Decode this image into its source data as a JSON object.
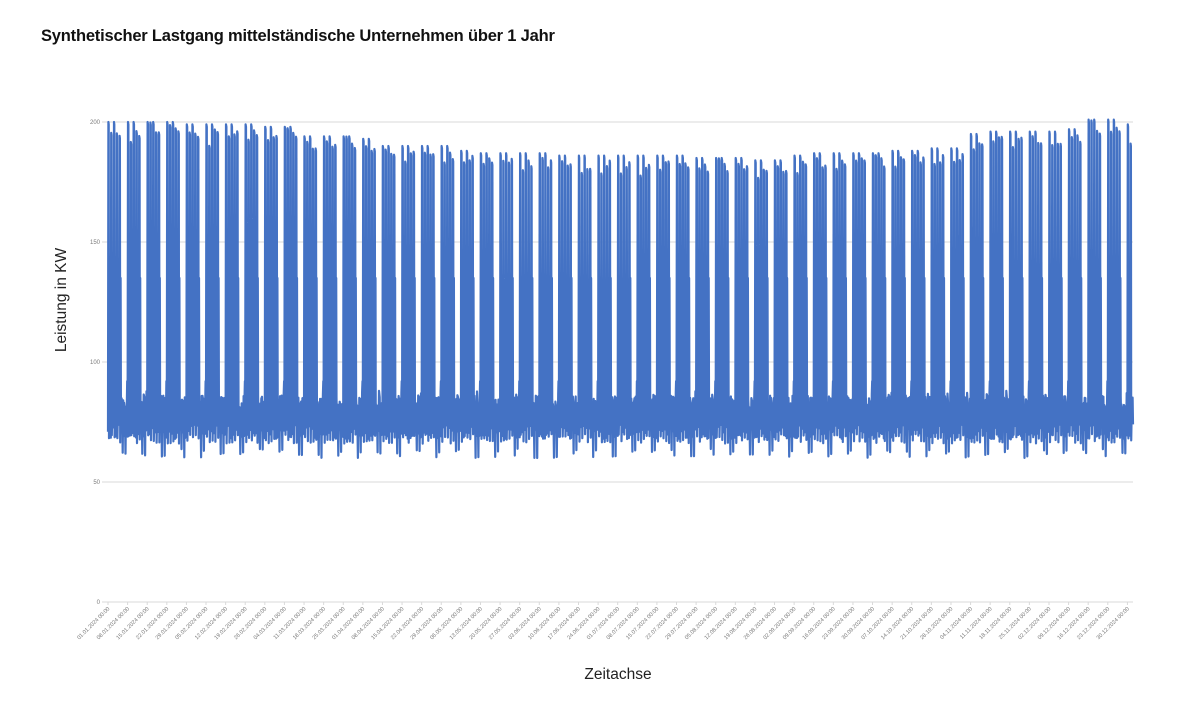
{
  "title": "Synthetischer Lastgang mittelständische Unternehmen über 1 Jahr",
  "colors": {
    "series": "#4472C4",
    "grid": "#d9d9d9",
    "axis_text": "#7a7a7a",
    "background": "#ffffff"
  },
  "chart_data": {
    "type": "line",
    "title": "Synthetischer Lastgang mittelständische Unternehmen über 1 Jahr",
    "xlabel": "Zeitachse",
    "ylabel": "Leistung in KW",
    "ylim": [
      0,
      200
    ],
    "yticks": [
      0,
      50,
      100,
      150,
      200
    ],
    "grid": true,
    "legend": "none",
    "x_tick_labels": [
      "01.01.2024 00:00",
      "08.01.2024 00:00",
      "15.01.2024 00:00",
      "22.01.2024 00:00",
      "29.01.2024 00:00",
      "05.02.2024 00:00",
      "12.02.2024 00:00",
      "19.02.2024 00:00",
      "26.02.2024 00:00",
      "04.03.2024 00:00",
      "11.03.2024 00:00",
      "18.03.2024 00:00",
      "25.03.2024 00:00",
      "01.04.2024 00:00",
      "08.04.2024 00:00",
      "15.04.2024 00:00",
      "22.04.2024 00:00",
      "29.04.2024 00:00",
      "06.05.2024 00:00",
      "13.05.2024 00:00",
      "20.05.2024 00:00",
      "27.05.2024 00:00",
      "03.06.2024 00:00",
      "10.06.2024 00:00",
      "17.06.2024 00:00",
      "24.06.2024 00:00",
      "01.07.2024 00:00",
      "08.07.2024 00:00",
      "15.07.2024 00:00",
      "22.07.2024 00:00",
      "29.07.2024 00:00",
      "05.08.2024 00:00",
      "12.08.2024 00:00",
      "19.08.2024 00:00",
      "26.08.2024 00:00",
      "02.09.2024 00:00",
      "09.09.2024 00:00",
      "16.09.2024 00:00",
      "23.09.2024 00:00",
      "30.09.2024 00:00",
      "07.10.2024 00:00",
      "14.10.2024 00:00",
      "21.10.2024 00:00",
      "28.10.2024 00:00",
      "04.11.2024 00:00",
      "11.11.2024 00:00",
      "18.11.2024 00:00",
      "25.11.2024 00:00",
      "02.12.2024 00:00",
      "09.12.2024 00:00",
      "16.12.2024 00:00",
      "23.12.2024 00:00",
      "30.12.2024 00:00"
    ],
    "series": [
      {
        "name": "Leistung in KW",
        "resolution": "daily pattern (weekday peaks, off-peak spikes, base load)",
        "weekly_peak_kw": [
          200,
          200,
          200,
          200,
          199,
          199,
          199,
          199,
          198,
          198,
          194,
          194,
          194,
          193,
          190,
          190,
          190,
          190,
          188,
          187,
          187,
          187,
          187,
          186,
          186,
          186,
          186,
          186,
          186,
          186,
          185,
          185,
          185,
          184,
          184,
          186,
          187,
          187,
          187,
          187,
          188,
          188,
          189,
          189,
          195,
          196,
          196,
          196,
          196,
          197,
          201,
          201,
          199
        ],
        "secondary_spike_kw": 135,
        "base_load_kw": {
          "min": 60,
          "typical_low": 68,
          "typical_high": 86,
          "max": 92
        }
      }
    ]
  }
}
